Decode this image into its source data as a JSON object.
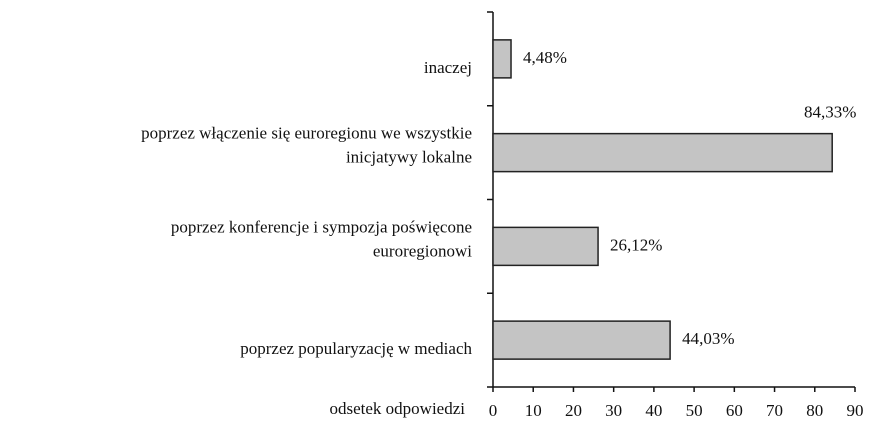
{
  "chart_data": {
    "type": "barh",
    "categories": [
      "inaczej",
      "poprzez włączenie się euroregionu we wszystkie\ninicjatywy lokalne",
      "poprzez konferencje i sympozja poświęcone\neuroregionowi",
      "poprzez popularyzację w mediach"
    ],
    "values": [
      4.48,
      84.33,
      26.12,
      44.03
    ],
    "value_labels": [
      "4,48%",
      "84,33%",
      "26,12%",
      "44,03%"
    ],
    "color": "#c4c4c4",
    "xlabel": "odsetek odpowiedzi",
    "xlim": [
      0,
      90
    ],
    "xticks": [
      0,
      10,
      20,
      30,
      40,
      50,
      60,
      70,
      80,
      90
    ]
  }
}
